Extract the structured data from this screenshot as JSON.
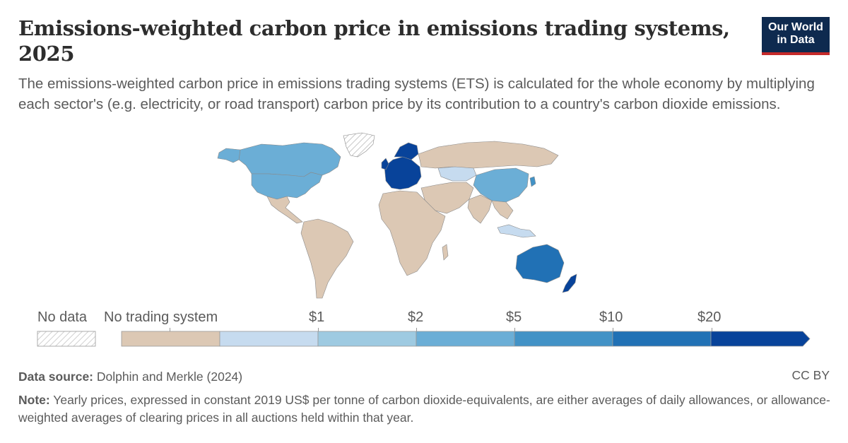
{
  "header": {
    "title": "Emissions-weighted carbon price in emissions trading systems, 2025",
    "subtitle": "The emissions-weighted carbon price in emissions trading systems (ETS) is calculated for the whole economy by multiplying each sector's (e.g. electricity, or road transport) carbon price by its contribution to a country's carbon dioxide emissions.",
    "logo_line1": "Our World",
    "logo_line2": "in Data"
  },
  "colors": {
    "no_data": "#ffffff",
    "no_trading": "#dcc8b4",
    "bin0": "#c6dbef",
    "bin1": "#9ecae1",
    "bin2": "#6baed6",
    "bin3": "#4292c6",
    "bin4": "#2171b5",
    "bin5": "#08439a",
    "border": "#8a8a8a",
    "brand": "#0e2a4f",
    "brand_accent": "#c52a2a"
  },
  "legend": {
    "no_data_label": "No data",
    "no_trading_label": "No trading system",
    "thresholds": [
      "$1",
      "$2",
      "$5",
      "$10",
      "$20"
    ]
  },
  "map_data": {
    "Canada": "bin2",
    "United States": "bin2",
    "Greenland": "no_data",
    "China": "bin2",
    "Kazakhstan": "bin0",
    "South Korea": "bin3",
    "Indonesia": "bin0",
    "Australia": "bin4",
    "New Zealand": "bin5",
    "European Union": "bin5",
    "United Kingdom": "bin5",
    "Norway": "bin5",
    "Mexico": "no_trading",
    "Brazil": "no_trading",
    "Russia": "no_trading",
    "India": "no_trading",
    "Africa": "no_trading"
  },
  "footer": {
    "source_label": "Data source:",
    "source_text": "Dolphin and Merkle (2024)",
    "license": "CC BY",
    "note_label": "Note:",
    "note_text": "Yearly prices, expressed in constant 2019 US$ per tonne of carbon dioxide-equivalents, are either averages of daily allowances, or allowance-weighted averages of clearing prices in all auctions held within that year."
  }
}
